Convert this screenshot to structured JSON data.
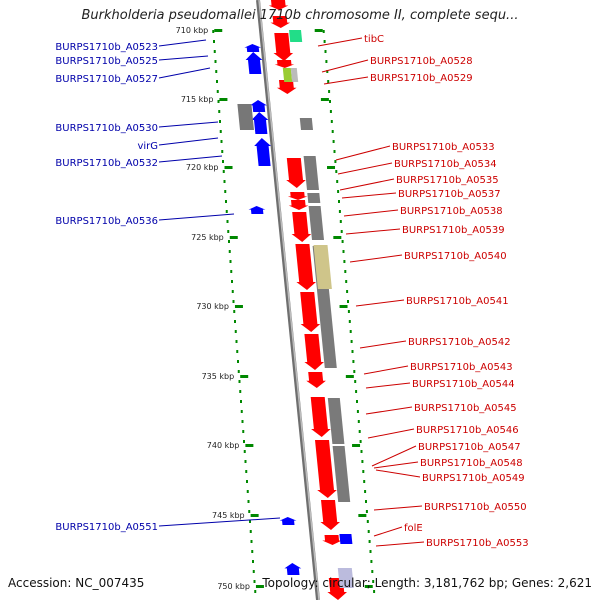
{
  "header": {
    "title": "Burkholderia pseudomallei 1710b chromosome II, complete sequ..."
  },
  "footer": {
    "accession": "Accession: NC_007435",
    "summary": "Topology: circular; Length: 3,181,762 bp; Genes: 2,621"
  },
  "scale": {
    "ticks": [
      "710 kbp",
      "715 kbp",
      "720 kbp",
      "725 kbp",
      "730 kbp",
      "735 kbp",
      "740 kbp",
      "745 kbp",
      "750 kbp"
    ]
  },
  "colors": {
    "forward_gene": "#ff0000",
    "reverse_gene": "#0000ff",
    "label_left": "#0000aa",
    "label_right": "#cc0000",
    "backbone": "#888888",
    "scale": "#008800"
  },
  "labels": {
    "left": [
      "BURPS1710b_A0523",
      "BURPS1710b_A0525",
      "BURPS1710b_A0527",
      "BURPS1710b_A0530",
      "virG",
      "BURPS1710b_A0532",
      "BURPS1710b_A0536",
      "BURPS1710b_A0551"
    ],
    "right": [
      "tibC",
      "BURPS1710b_A0528",
      "BURPS1710b_A0529",
      "BURPS1710b_A0533",
      "BURPS1710b_A0534",
      "BURPS1710b_A0535",
      "BURPS1710b_A0537",
      "BURPS1710b_A0538",
      "BURPS1710b_A0539",
      "BURPS1710b_A0540",
      "BURPS1710b_A0541",
      "BURPS1710b_A0542",
      "BURPS1710b_A0543",
      "BURPS1710b_A0544",
      "BURPS1710b_A0545",
      "BURPS1710b_A0546",
      "BURPS1710b_A0547",
      "BURPS1710b_A0548",
      "BURPS1710b_A0549",
      "BURPS1710b_A0550",
      "folE",
      "BURPS1710b_A0553"
    ]
  }
}
